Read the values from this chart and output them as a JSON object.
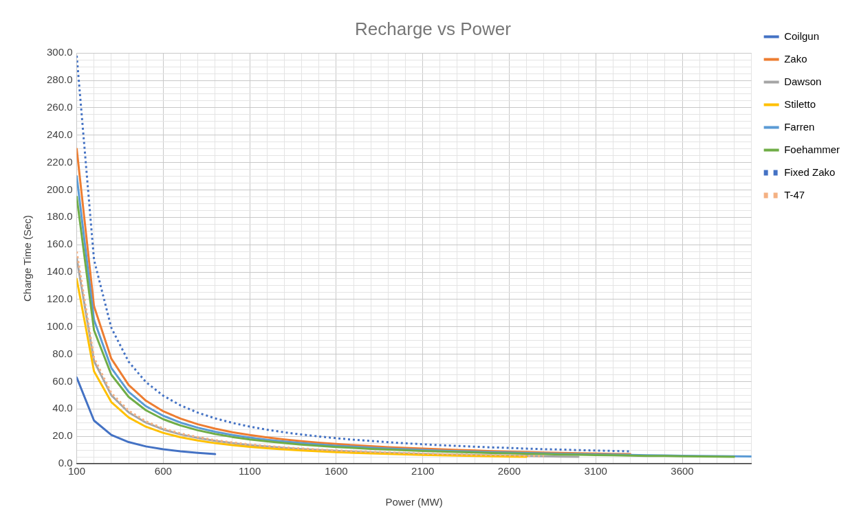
{
  "chart_data": {
    "type": "line",
    "title": "Recharge vs Power",
    "xlabel": "Power (MW)",
    "ylabel": "Charge Time (Sec)",
    "legend": "right",
    "grid": true,
    "marker": "none",
    "x": [
      100,
      200,
      300,
      400,
      500,
      600,
      700,
      800,
      900,
      1000,
      1100,
      1200,
      1300,
      1400,
      1500,
      1600,
      1700,
      1800,
      1900,
      2000,
      2100,
      2200,
      2300,
      2400,
      2500,
      2600,
      2700,
      2800,
      2900,
      3000,
      3100,
      3200,
      3300,
      3400,
      3500,
      3600,
      3700,
      3800,
      3900,
      4000
    ],
    "xlim": [
      100,
      4000
    ],
    "xticks": [
      100,
      {
        "value": 200,
        "label": null
      },
      {
        "value": 300,
        "label": null
      },
      {
        "value": 400,
        "label": null
      },
      {
        "value": 500,
        "label": null
      },
      600,
      {
        "value": 700,
        "label": null
      },
      {
        "value": 800,
        "label": null
      },
      {
        "value": 900,
        "label": null
      },
      {
        "value": 1000,
        "label": null
      },
      1100,
      {
        "value": 1200,
        "label": null
      },
      {
        "value": 1300,
        "label": null
      },
      {
        "value": 1400,
        "label": null
      },
      {
        "value": 1500,
        "label": null
      },
      1600,
      {
        "value": 1700,
        "label": null
      },
      {
        "value": 1800,
        "label": null
      },
      {
        "value": 1900,
        "label": null
      },
      {
        "value": 2000,
        "label": null
      },
      2100,
      {
        "value": 2200,
        "label": null
      },
      {
        "value": 2300,
        "label": null
      },
      {
        "value": 2400,
        "label": null
      },
      {
        "value": 2500,
        "label": null
      },
      2600,
      {
        "value": 2700,
        "label": null
      },
      {
        "value": 2800,
        "label": null
      },
      {
        "value": 2900,
        "label": null
      },
      {
        "value": 3000,
        "label": null
      },
      3100,
      {
        "value": 3200,
        "label": null
      },
      {
        "value": 3300,
        "label": null
      },
      {
        "value": 3400,
        "label": null
      },
      {
        "value": 3500,
        "label": null
      },
      3600,
      {
        "value": 3700,
        "label": null
      },
      {
        "value": 3800,
        "label": null
      },
      {
        "value": 3900,
        "label": null
      },
      {
        "value": 4000,
        "label": null
      }
    ],
    "ylim": [
      0,
      300
    ],
    "yticks": [
      {
        "value": 0,
        "label": "0.0"
      },
      {
        "value": 5,
        "label": null
      },
      {
        "value": 10,
        "label": null
      },
      {
        "value": 15,
        "label": null
      },
      {
        "value": 20,
        "label": "20.0"
      },
      {
        "value": 25,
        "label": null
      },
      {
        "value": 30,
        "label": null
      },
      {
        "value": 35,
        "label": null
      },
      {
        "value": 40,
        "label": "40.0"
      },
      {
        "value": 45,
        "label": null
      },
      {
        "value": 50,
        "label": null
      },
      {
        "value": 55,
        "label": null
      },
      {
        "value": 60,
        "label": "60.0"
      },
      {
        "value": 65,
        "label": null
      },
      {
        "value": 70,
        "label": null
      },
      {
        "value": 75,
        "label": null
      },
      {
        "value": 80,
        "label": "80.0"
      },
      {
        "value": 85,
        "label": null
      },
      {
        "value": 90,
        "label": null
      },
      {
        "value": 95,
        "label": null
      },
      {
        "value": 100,
        "label": "100.0"
      },
      {
        "value": 105,
        "label": null
      },
      {
        "value": 110,
        "label": null
      },
      {
        "value": 115,
        "label": null
      },
      {
        "value": 120,
        "label": "120.0"
      },
      {
        "value": 125,
        "label": null
      },
      {
        "value": 130,
        "label": null
      },
      {
        "value": 135,
        "label": null
      },
      {
        "value": 140,
        "label": "140.0"
      },
      {
        "value": 145,
        "label": null
      },
      {
        "value": 150,
        "label": null
      },
      {
        "value": 155,
        "label": null
      },
      {
        "value": 160,
        "label": "160.0"
      },
      {
        "value": 165,
        "label": null
      },
      {
        "value": 170,
        "label": null
      },
      {
        "value": 175,
        "label": null
      },
      {
        "value": 180,
        "label": "180.0"
      },
      {
        "value": 185,
        "label": null
      },
      {
        "value": 190,
        "label": null
      },
      {
        "value": 195,
        "label": null
      },
      {
        "value": 200,
        "label": "200.0"
      },
      {
        "value": 205,
        "label": null
      },
      {
        "value": 210,
        "label": null
      },
      {
        "value": 215,
        "label": null
      },
      {
        "value": 220,
        "label": "220.0"
      },
      {
        "value": 225,
        "label": null
      },
      {
        "value": 230,
        "label": null
      },
      {
        "value": 235,
        "label": null
      },
      {
        "value": 240,
        "label": "240.0"
      },
      {
        "value": 245,
        "label": null
      },
      {
        "value": 250,
        "label": null
      },
      {
        "value": 255,
        "label": null
      },
      {
        "value": 260,
        "label": "260.0"
      },
      {
        "value": 265,
        "label": null
      },
      {
        "value": 270,
        "label": null
      },
      {
        "value": 275,
        "label": null
      },
      {
        "value": 280,
        "label": "280.0"
      },
      {
        "value": 285,
        "label": null
      },
      {
        "value": 290,
        "label": null
      },
      {
        "value": 295,
        "label": null
      },
      {
        "value": 300,
        "label": "300.0"
      }
    ],
    "series": [
      {
        "name": "Coilgun",
        "color": "#4472c4",
        "line_style": "solid",
        "values": [
          63,
          31.5,
          21,
          15.8,
          12.6,
          10.5,
          9,
          7.9,
          7,
          null,
          null,
          null,
          null,
          null,
          null,
          null,
          null,
          null,
          null,
          null,
          null,
          null,
          null,
          null,
          null,
          null,
          null,
          null,
          null,
          null,
          null,
          null,
          null,
          null,
          null,
          null,
          null,
          null,
          null,
          null
        ]
      },
      {
        "name": "Zako",
        "color": "#ed7d31",
        "line_style": "solid",
        "values": [
          230,
          115,
          76.7,
          57.5,
          46,
          38.3,
          32.9,
          28.8,
          25.6,
          23,
          20.9,
          19.2,
          17.7,
          16.4,
          15.3,
          14.4,
          13.5,
          12.8,
          12.1,
          11.5,
          11,
          10.5,
          10,
          9.6,
          9.2,
          8.8,
          8.5,
          8.2,
          7.9,
          7.7,
          7.4,
          7.2,
          7,
          null,
          null,
          null,
          null,
          null,
          null,
          null
        ]
      },
      {
        "name": "Dawson",
        "color": "#a5a5a5",
        "line_style": "solid",
        "values": [
          150,
          75,
          50,
          37.5,
          30,
          25,
          21.4,
          18.8,
          16.7,
          15,
          13.6,
          12.5,
          11.5,
          10.7,
          10,
          9.4,
          8.8,
          8.3,
          7.9,
          7.5,
          7.1,
          6.8,
          6.5,
          6.3,
          6,
          5.8,
          5.6,
          5.4,
          5.2,
          5,
          null,
          null,
          null,
          null,
          null,
          null,
          null,
          null,
          null,
          null
        ]
      },
      {
        "name": "Stiletto",
        "color": "#ffc000",
        "line_style": "solid",
        "values": [
          135,
          67.5,
          45,
          33.8,
          27,
          22.5,
          19.3,
          16.9,
          15,
          13.5,
          12.3,
          11.3,
          10.4,
          9.6,
          9,
          8.4,
          7.9,
          7.5,
          7.1,
          6.8,
          6.4,
          6.1,
          5.9,
          5.6,
          5.4,
          5.2,
          5,
          null,
          null,
          null,
          null,
          null,
          null,
          null,
          null,
          null,
          null,
          null,
          null,
          null
        ]
      },
      {
        "name": "Farren",
        "color": "#5b9bd5",
        "line_style": "solid",
        "values": [
          210,
          105,
          70,
          52.5,
          42,
          35,
          30,
          26.3,
          23.3,
          21,
          19.1,
          17.5,
          16.2,
          15,
          14,
          13.1,
          12.4,
          11.7,
          11.1,
          10.5,
          10,
          9.5,
          9.1,
          8.8,
          8.4,
          8.1,
          7.8,
          7.5,
          7.2,
          7,
          6.8,
          6.6,
          6.4,
          6.2,
          6,
          5.8,
          5.7,
          5.5,
          5.4,
          5.3
        ]
      },
      {
        "name": "Foehammer",
        "color": "#70ad47",
        "line_style": "solid",
        "values": [
          195,
          97.5,
          65,
          48.8,
          39,
          32.5,
          27.9,
          24.4,
          21.7,
          19.5,
          17.7,
          16.3,
          15,
          13.9,
          13,
          12.2,
          11.5,
          10.8,
          10.3,
          9.8,
          9.3,
          8.9,
          8.5,
          8.1,
          7.8,
          7.5,
          7.2,
          7,
          6.7,
          6.5,
          6.3,
          6.1,
          5.9,
          5.7,
          5.6,
          5.4,
          5.3,
          5.1,
          5,
          null
        ]
      },
      {
        "name": "Fixed Zako",
        "color": "#4472c4",
        "line_style": "dotted",
        "values": [
          298,
          149,
          99.3,
          74.5,
          59.6,
          49.7,
          42.6,
          37.3,
          33.1,
          29.8,
          27.1,
          24.8,
          22.9,
          21.3,
          19.9,
          18.6,
          17.5,
          16.6,
          15.7,
          14.9,
          14.2,
          13.5,
          13,
          12.4,
          11.9,
          11.5,
          11,
          10.6,
          10.3,
          9.9,
          9.6,
          9.3,
          9,
          null,
          null,
          null,
          null,
          null,
          null,
          null
        ]
      },
      {
        "name": "T-47",
        "color": "#f4b183",
        "line_style": "dotted",
        "values": [
          155,
          77.5,
          51.7,
          38.8,
          31,
          25.8,
          22.1,
          19.4,
          17.2,
          15.5,
          14.1,
          12.9,
          11.9,
          11.1,
          10.3,
          9.7,
          9.1,
          8.6,
          8.2,
          7.8,
          7.4,
          7,
          6.7,
          6.5,
          6.2,
          6,
          5.7,
          5.5,
          null,
          null,
          null,
          null,
          null,
          null,
          null,
          null,
          null,
          null,
          null,
          null
        ]
      }
    ]
  }
}
